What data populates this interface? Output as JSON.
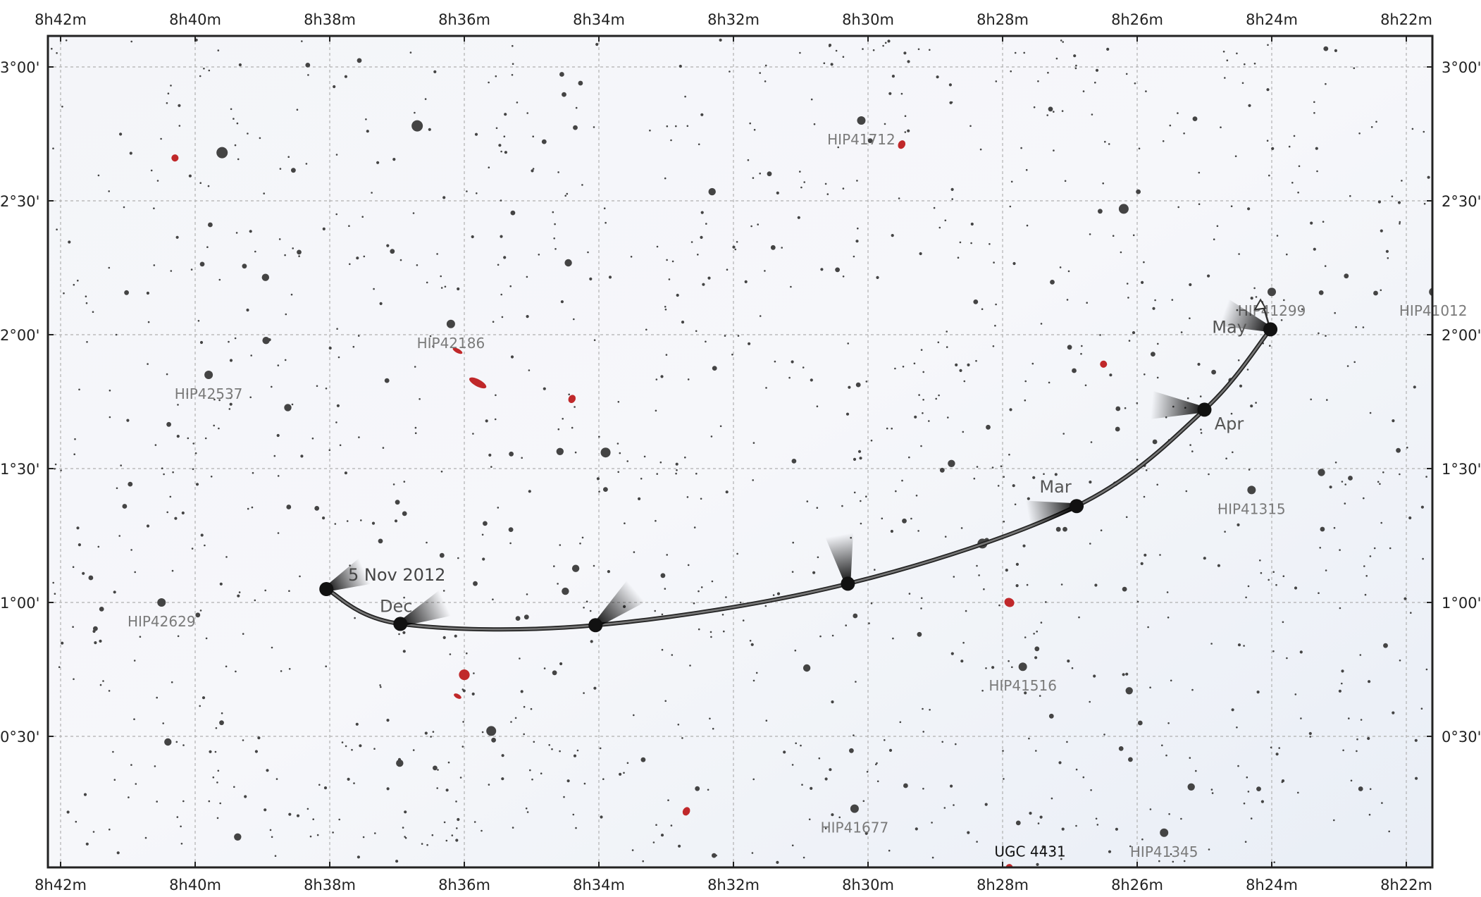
{
  "map": {
    "ra_ticks": [
      "8h42m",
      "8h40m",
      "8h38m",
      "8h36m",
      "8h34m",
      "8h32m",
      "8h30m",
      "8h28m",
      "8h26m",
      "8h24m",
      "8h22m"
    ],
    "dec_ticks": [
      "3°00'",
      "2°30'",
      "2°00'",
      "1°30'",
      "1°00'",
      "0°30'"
    ],
    "star_labels": [
      {
        "name": "HIP41712",
        "ra_min": 510.1,
        "dec_deg": 2.8
      },
      {
        "name": "HIP41299",
        "ra_min": 504.0,
        "dec_deg": 2.16
      },
      {
        "name": "HIP41012",
        "ra_min": 501.6,
        "dec_deg": 2.16
      },
      {
        "name": "HIP42186",
        "ra_min": 516.2,
        "dec_deg": 2.04
      },
      {
        "name": "HIP42537",
        "ra_min": 519.8,
        "dec_deg": 1.85
      },
      {
        "name": "HIP41315",
        "ra_min": 504.3,
        "dec_deg": 1.42
      },
      {
        "name": "HIP42629",
        "ra_min": 520.5,
        "dec_deg": 1.0
      },
      {
        "name": "HIP41516",
        "ra_min": 507.7,
        "dec_deg": 0.76
      },
      {
        "name": "HIP41677",
        "ra_min": 510.2,
        "dec_deg": 0.23
      },
      {
        "name": "HIP41345",
        "ra_min": 505.6,
        "dec_deg": 0.14
      }
    ],
    "galaxy_label": {
      "name": "UGC 4431",
      "ra_min": 507.8,
      "dec_deg": 0.03
    },
    "path_labels": [
      {
        "text": "5 Nov 2012",
        "ra_min": 517.8,
        "dec_deg": 1.05
      },
      {
        "text": "Dec",
        "ra_min": 516.9,
        "dec_deg": 0.96
      },
      {
        "text": "Mar",
        "ra_min": 506.8,
        "dec_deg": 1.38
      },
      {
        "text": "Apr",
        "ra_min": 504.8,
        "dec_deg": 1.64
      },
      {
        "text": "May",
        "ra_min": 504.5,
        "dec_deg": 2.0
      }
    ],
    "path_points": [
      {
        "ra_min": 518.05,
        "dec_deg": 1.05
      },
      {
        "ra_min": 516.95,
        "dec_deg": 0.92
      },
      {
        "ra_min": 514.05,
        "dec_deg": 0.915
      },
      {
        "ra_min": 510.3,
        "dec_deg": 1.07
      },
      {
        "ra_min": 506.9,
        "dec_deg": 1.36
      },
      {
        "ra_min": 505.0,
        "dec_deg": 1.72
      },
      {
        "ra_min": 504.02,
        "dec_deg": 2.02
      }
    ],
    "galaxies": [
      {
        "ra_min": 520.3,
        "dec_deg": 2.66,
        "w": 0.11,
        "h": 0.02
      },
      {
        "ra_min": 509.5,
        "dec_deg": 2.71,
        "w": 0.09,
        "h": 0.025
      },
      {
        "ra_min": 516.1,
        "dec_deg": 1.94,
        "w": 0.17,
        "h": 0.012
      },
      {
        "ra_min": 515.8,
        "dec_deg": 1.82,
        "w": 0.3,
        "h": 0.02
      },
      {
        "ra_min": 514.4,
        "dec_deg": 1.76,
        "w": 0.1,
        "h": 0.024
      },
      {
        "ra_min": 506.5,
        "dec_deg": 1.89,
        "w": 0.09,
        "h": 0.02
      },
      {
        "ra_min": 507.9,
        "dec_deg": 1.0,
        "w": 0.16,
        "h": 0.025
      },
      {
        "ra_min": 516.0,
        "dec_deg": 0.73,
        "w": 0.17,
        "h": 0.03
      },
      {
        "ra_min": 516.1,
        "dec_deg": 0.65,
        "w": 0.13,
        "h": 0.007
      },
      {
        "ra_min": 512.7,
        "dec_deg": 0.22,
        "w": 0.08,
        "h": 0.025
      },
      {
        "ra_min": 507.9,
        "dec_deg": 0.01,
        "w": 0.1,
        "h": 0.02
      }
    ],
    "colors": {
      "background": "#f2f4f8",
      "grid": "#b0b0b0",
      "star": "#444444",
      "galaxy": "#c0282a",
      "path": "#444444"
    }
  }
}
